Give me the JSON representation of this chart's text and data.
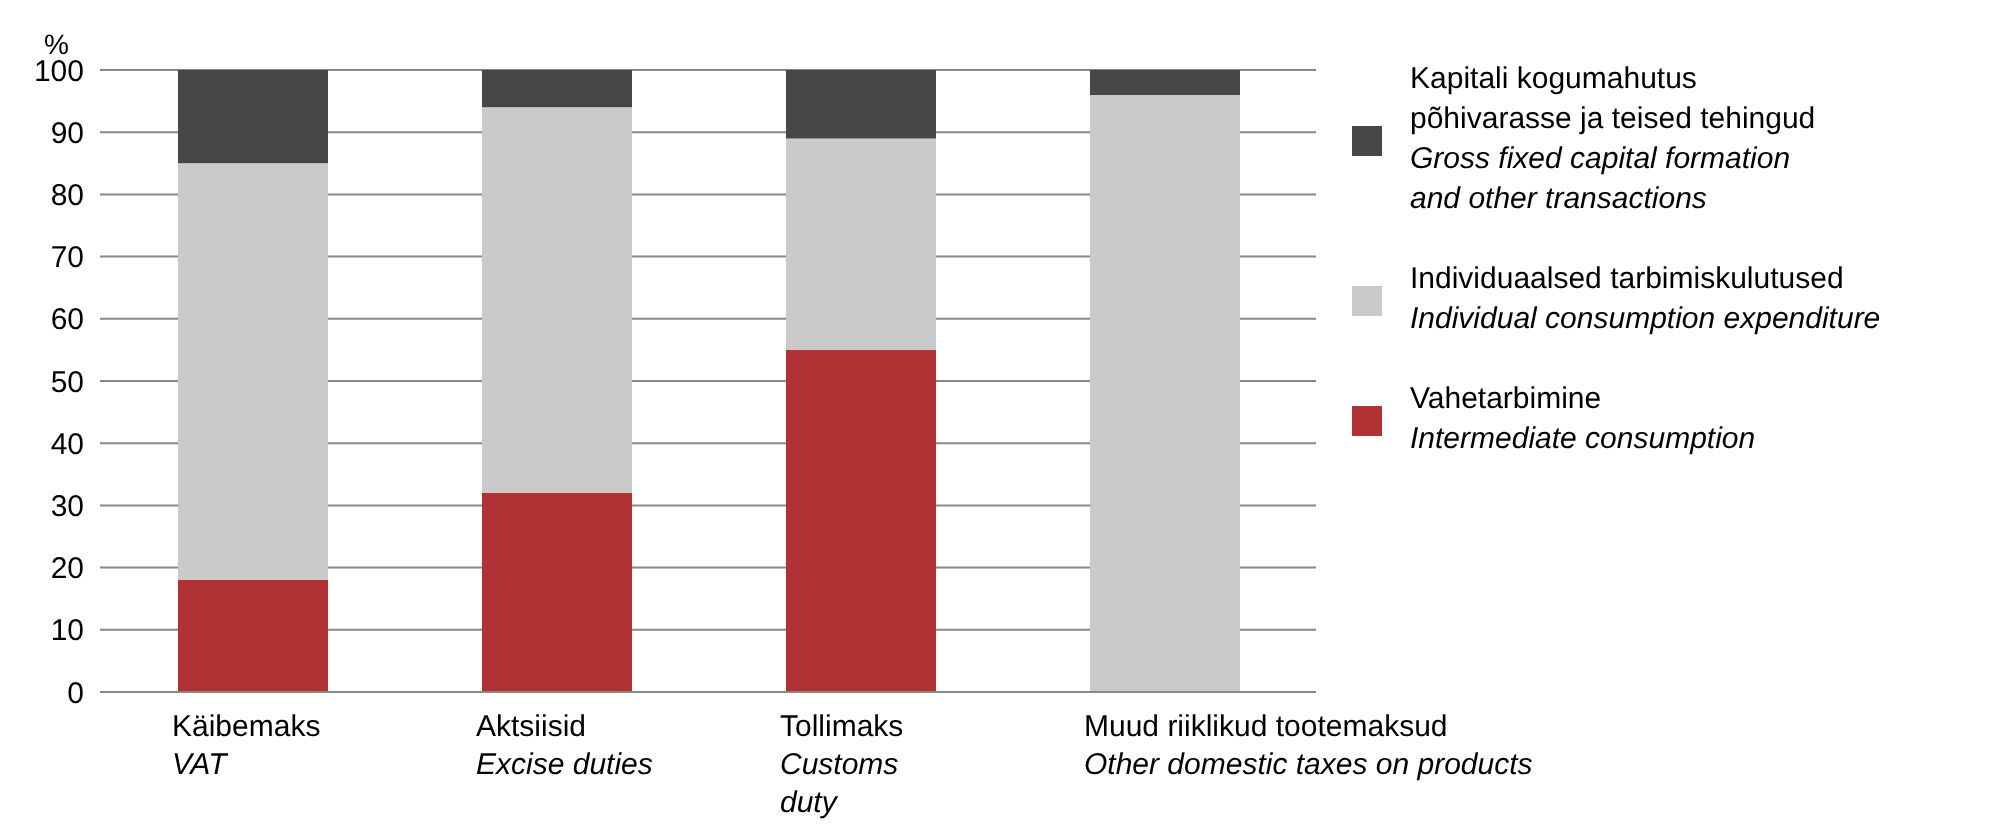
{
  "chart_data": {
    "type": "bar",
    "stacked": true,
    "ylabel": "%",
    "categories": [
      "Käibemaks\nVAT",
      "Aktsiisid\nExcise duties",
      "Tollimaks\nCustoms\nduty",
      "Muud riiklikud tootemaksud\nOther domestic taxes on products"
    ],
    "series": [
      {
        "name": "Vahetarbimine\nIntermediate consumption",
        "color": "#b03234",
        "values": [
          18,
          32,
          55,
          0
        ]
      },
      {
        "name": "Individuaalsed tarbimiskulutused\nIndividual consumption expenditure",
        "color": "#cacaca",
        "values": [
          67,
          62,
          34,
          96
        ]
      },
      {
        "name": "Kapitali kogumahutus põhivarasse ja teised tehingud\nGross fixed capital formation and other transactions",
        "color": "#474747",
        "values": [
          15,
          6,
          11,
          4
        ]
      }
    ],
    "ylim": [
      0,
      100
    ],
    "yticks": [
      0,
      10,
      20,
      30,
      40,
      50,
      60,
      70,
      80,
      90,
      100
    ],
    "grid": "y",
    "legend": "right"
  }
}
